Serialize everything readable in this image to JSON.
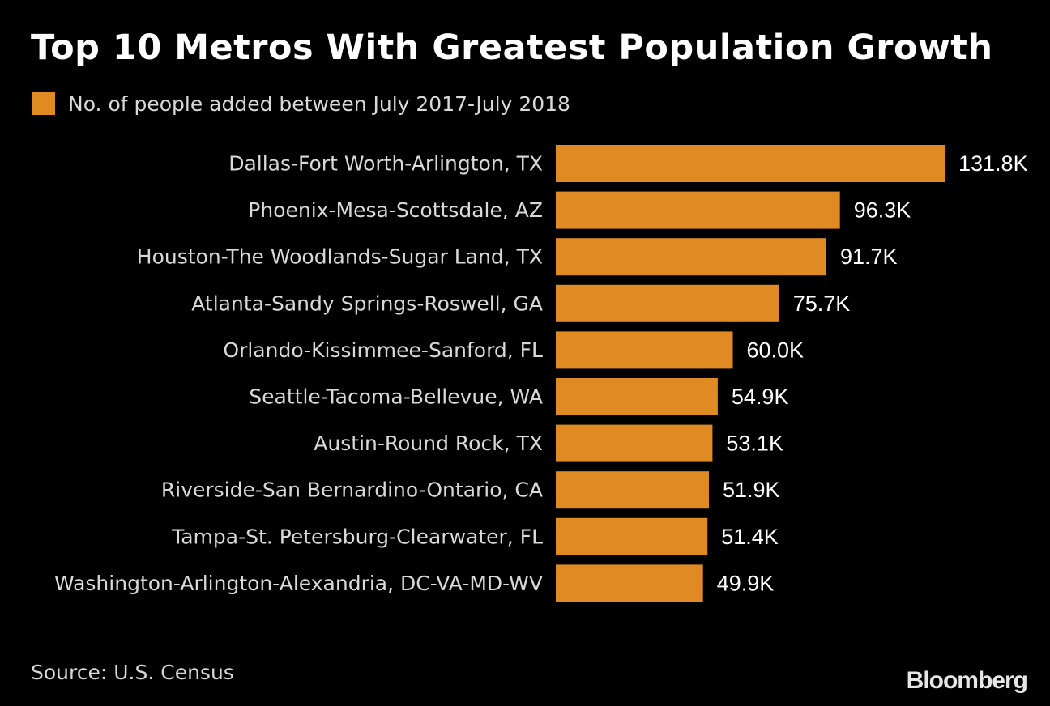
{
  "chart_data": {
    "type": "bar",
    "orientation": "horizontal",
    "title": "Top 10 Metros With Greatest Population Growth",
    "legend": [
      "No. of people added between July 2017-July 2018"
    ],
    "categories": [
      "Dallas-Fort Worth-Arlington, TX",
      "Phoenix-Mesa-Scottsdale, AZ",
      "Houston-The Woodlands-Sugar Land, TX",
      "Atlanta-Sandy Springs-Roswell, GA",
      "Orlando-Kissimmee-Sanford, FL",
      "Seattle-Tacoma-Bellevue, WA",
      "Austin-Round Rock, TX",
      "Riverside-San Bernardino-Ontario, CA",
      "Tampa-St. Petersburg-Clearwater, FL",
      "Washington-Arlington-Alexandria, DC-VA-MD-WV"
    ],
    "values": [
      131.8,
      96.3,
      91.7,
      75.7,
      60.0,
      54.9,
      53.1,
      51.9,
      51.4,
      49.9
    ],
    "value_labels": [
      "131.8K",
      "96.3K",
      "91.7K",
      "75.7K",
      "60.0K",
      "54.9K",
      "53.1K",
      "51.9K",
      "51.4K",
      "49.9K"
    ],
    "unit": "K",
    "xlim": [
      0,
      131.8
    ],
    "grid": false,
    "legend_position": "top-left",
    "colors": {
      "bar": "#e08a24",
      "background": "#000000",
      "text": "#ffffff",
      "muted_text": "#d9d9d9"
    }
  },
  "footer": {
    "source": "Source: U.S. Census",
    "brand": "Bloomberg"
  }
}
